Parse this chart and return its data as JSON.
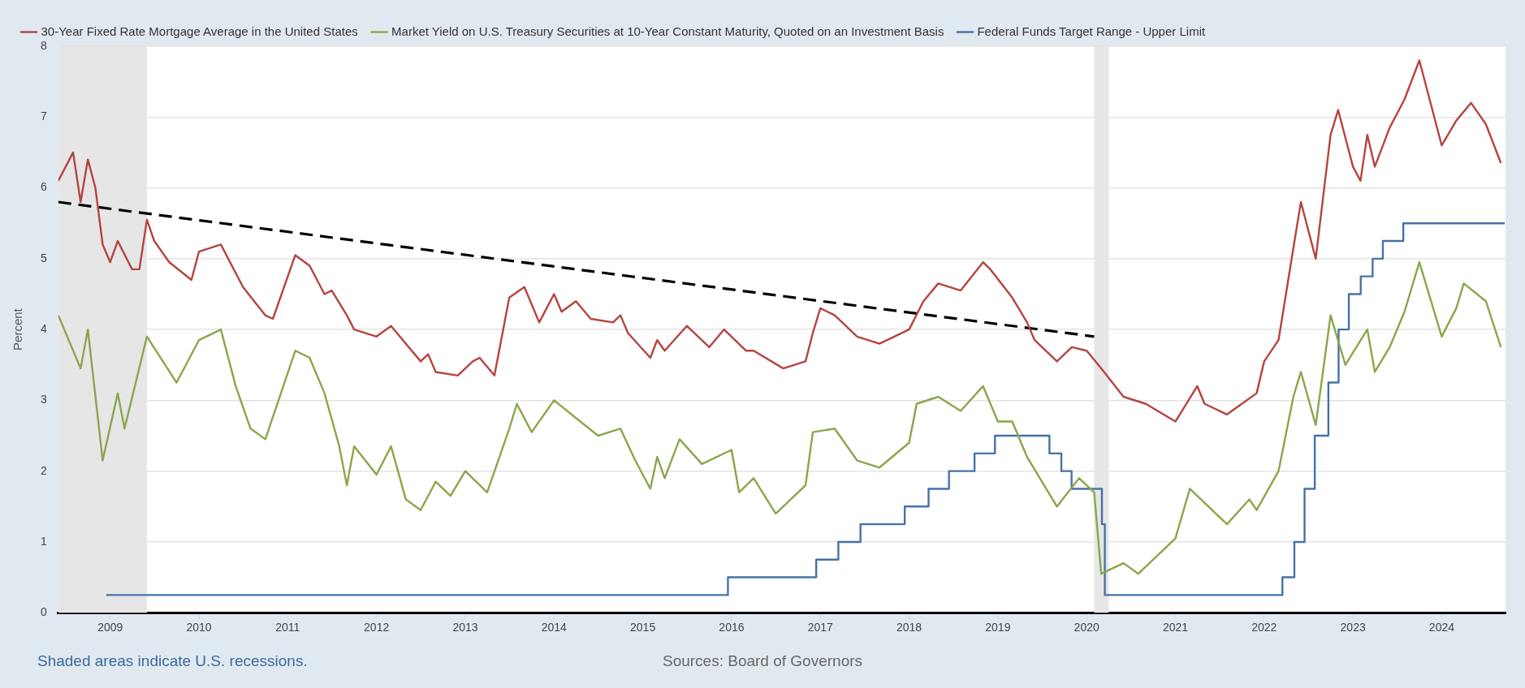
{
  "chart_data": {
    "type": "line",
    "ylabel": "Percent",
    "legend": "top left",
    "grid": "y",
    "xlim": [
      "2008-06-01",
      "2024-09-20"
    ],
    "xticks": [
      "2009",
      "2010",
      "2011",
      "2012",
      "2013",
      "2014",
      "2015",
      "2016",
      "2017",
      "2018",
      "2019",
      "2020",
      "2021",
      "2022",
      "2023",
      "2024"
    ],
    "ylim": [
      0,
      8
    ],
    "yticks": [
      0,
      1,
      2,
      3,
      4,
      5,
      6,
      7,
      8
    ],
    "bands": [
      {
        "axis": "x",
        "from": "2008-06-01",
        "to": "2009-06",
        "color": "#e6e6e6"
      },
      {
        "axis": "x",
        "from": "2020-02",
        "to": "2020-04",
        "color": "#e6e6e6"
      }
    ],
    "annotations": [
      "Shaded areas indicate U.S. recessions.",
      "Sources: Board of Governors"
    ],
    "series": [
      {
        "name": "30-Year Fixed Rate Mortgage Average in the United States",
        "color": "#b5443f",
        "x": [
          "2008-06",
          "2008-08",
          "2008-09",
          "2008-10",
          "2008-11",
          "2008-12",
          "2009-01",
          "2009-02",
          "2009-04",
          "2009-05",
          "2009-06",
          "2009-07",
          "2009-09",
          "2009-12",
          "2010-01",
          "2010-04",
          "2010-07",
          "2010-10",
          "2010-11",
          "2011-02",
          "2011-04",
          "2011-06",
          "2011-07",
          "2011-09",
          "2011-10",
          "2012-01",
          "2012-03",
          "2012-07",
          "2012-08",
          "2012-09",
          "2012-12",
          "2013-02",
          "2013-03",
          "2013-05",
          "2013-07",
          "2013-09",
          "2013-11",
          "2014-01",
          "2014-02",
          "2014-04",
          "2014-06",
          "2014-09",
          "2014-10",
          "2014-11",
          "2015-02",
          "2015-03",
          "2015-04",
          "2015-07",
          "2015-10",
          "2015-12",
          "2016-03",
          "2016-04",
          "2016-08",
          "2016-11",
          "2016-12",
          "2017-01",
          "2017-03",
          "2017-04",
          "2017-06",
          "2017-09",
          "2018-01",
          "2018-03",
          "2018-05",
          "2018-08",
          "2018-11",
          "2018-12",
          "2019-03",
          "2019-05",
          "2019-06",
          "2019-09",
          "2019-11",
          "2020-01",
          "2020-03",
          "2020-06",
          "2020-09",
          "2021-01",
          "2021-04",
          "2021-05",
          "2021-08",
          "2021-12",
          "2022-01",
          "2022-03",
          "2022-05",
          "2022-06",
          "2022-08",
          "2022-10",
          "2022-11",
          "2023-01",
          "2023-02",
          "2023-03",
          "2023-04",
          "2023-06",
          "2023-08",
          "2023-10",
          "2024-01",
          "2024-03",
          "2024-05",
          "2024-07",
          "2024-09"
        ],
        "values": [
          6.1,
          6.5,
          5.8,
          6.4,
          6.0,
          5.2,
          4.95,
          5.25,
          4.85,
          4.85,
          5.55,
          5.25,
          4.95,
          4.7,
          5.1,
          5.2,
          4.6,
          4.2,
          4.15,
          5.05,
          4.9,
          4.5,
          4.55,
          4.2,
          4.0,
          3.9,
          4.05,
          3.55,
          3.65,
          3.4,
          3.35,
          3.55,
          3.6,
          3.35,
          4.45,
          4.6,
          4.1,
          4.5,
          4.25,
          4.4,
          4.15,
          4.1,
          4.2,
          3.95,
          3.6,
          3.85,
          3.7,
          4.05,
          3.75,
          4.0,
          3.7,
          3.7,
          3.45,
          3.55,
          3.95,
          4.3,
          4.2,
          4.1,
          3.9,
          3.8,
          4.0,
          4.4,
          4.65,
          4.55,
          4.95,
          4.85,
          4.45,
          4.1,
          3.85,
          3.55,
          3.75,
          3.7,
          3.45,
          3.05,
          2.95,
          2.7,
          3.2,
          2.95,
          2.8,
          3.1,
          3.55,
          3.85,
          5.15,
          5.8,
          5.0,
          6.75,
          7.1,
          6.3,
          6.1,
          6.75,
          6.3,
          6.85,
          7.25,
          7.8,
          6.6,
          6.95,
          7.2,
          6.9,
          6.35
        ]
      },
      {
        "name": "Market Yield on U.S. Treasury Securities at 10-Year Constant Maturity, Quoted on an Investment Basis",
        "color": "#8aa64a",
        "x": [
          "2008-06",
          "2008-09",
          "2008-10",
          "2008-12",
          "2009-02",
          "2009-03",
          "2009-06",
          "2009-10",
          "2010-01",
          "2010-04",
          "2010-06",
          "2010-08",
          "2010-10",
          "2011-02",
          "2011-04",
          "2011-06",
          "2011-08",
          "2011-09",
          "2011-10",
          "2012-01",
          "2012-03",
          "2012-05",
          "2012-07",
          "2012-09",
          "2012-11",
          "2013-01",
          "2013-04",
          "2013-07",
          "2013-08",
          "2013-10",
          "2014-01",
          "2014-04",
          "2014-07",
          "2014-10",
          "2014-12",
          "2015-02",
          "2015-03",
          "2015-04",
          "2015-06",
          "2015-09",
          "2016-01",
          "2016-02",
          "2016-04",
          "2016-07",
          "2016-11",
          "2016-12",
          "2017-03",
          "2017-06",
          "2017-09",
          "2018-01",
          "2018-02",
          "2018-05",
          "2018-08",
          "2018-11",
          "2019-01",
          "2019-03",
          "2019-05",
          "2019-09",
          "2019-12",
          "2020-02",
          "2020-03",
          "2020-06",
          "2020-08",
          "2021-01",
          "2021-03",
          "2021-08",
          "2021-11",
          "2021-12",
          "2022-03",
          "2022-05",
          "2022-06",
          "2022-08",
          "2022-10",
          "2022-12",
          "2023-03",
          "2023-04",
          "2023-06",
          "2023-08",
          "2023-10",
          "2024-01",
          "2024-03",
          "2024-04",
          "2024-07",
          "2024-09"
        ],
        "values": [
          4.2,
          3.45,
          4.0,
          2.15,
          3.1,
          2.6,
          3.9,
          3.25,
          3.85,
          4.0,
          3.2,
          2.6,
          2.45,
          3.7,
          3.6,
          3.1,
          2.35,
          1.8,
          2.35,
          1.95,
          2.35,
          1.6,
          1.45,
          1.85,
          1.65,
          2.0,
          1.7,
          2.6,
          2.95,
          2.55,
          3.0,
          2.75,
          2.5,
          2.6,
          2.15,
          1.75,
          2.2,
          1.9,
          2.45,
          2.1,
          2.3,
          1.7,
          1.9,
          1.4,
          1.8,
          2.55,
          2.6,
          2.15,
          2.05,
          2.4,
          2.95,
          3.05,
          2.85,
          3.2,
          2.7,
          2.7,
          2.2,
          1.5,
          1.9,
          1.7,
          0.55,
          0.7,
          0.55,
          1.05,
          1.75,
          1.25,
          1.6,
          1.45,
          2.0,
          3.05,
          3.4,
          2.65,
          4.2,
          3.5,
          4.0,
          3.4,
          3.75,
          4.25,
          4.95,
          3.9,
          4.3,
          4.65,
          4.4,
          3.75
        ]
      },
      {
        "name": "Federal Funds Target Range - Upper Limit",
        "color": "#4572a7",
        "type": "step",
        "x": [
          "2008-12-16",
          "2015-12-17",
          "2016-12-15",
          "2017-03-16",
          "2017-06-15",
          "2017-12-14",
          "2018-03-22",
          "2018-06-14",
          "2018-09-27",
          "2018-12-20",
          "2019-08-01",
          "2019-09-19",
          "2019-10-31",
          "2020-03-04",
          "2020-03-16",
          "2022-03-17",
          "2022-05-05",
          "2022-06-16",
          "2022-07-28",
          "2022-09-22",
          "2022-11-03",
          "2022-12-15",
          "2023-02-02",
          "2023-03-23",
          "2023-05-04",
          "2023-07-27",
          "2024-09-17"
        ],
        "values": [
          0.25,
          0.5,
          0.75,
          1.0,
          1.25,
          1.5,
          1.75,
          2.0,
          2.25,
          2.5,
          2.25,
          2.0,
          1.75,
          1.25,
          0.25,
          0.5,
          1.0,
          1.75,
          2.5,
          3.25,
          4.0,
          4.5,
          4.75,
          5.0,
          5.25,
          5.5,
          5.5
        ]
      },
      {
        "type": "line",
        "color": "#000000",
        "line_style": "dashed",
        "x": [
          "2008-06-01",
          "2020-02"
        ],
        "values": [
          5.8,
          3.9
        ]
      }
    ]
  }
}
